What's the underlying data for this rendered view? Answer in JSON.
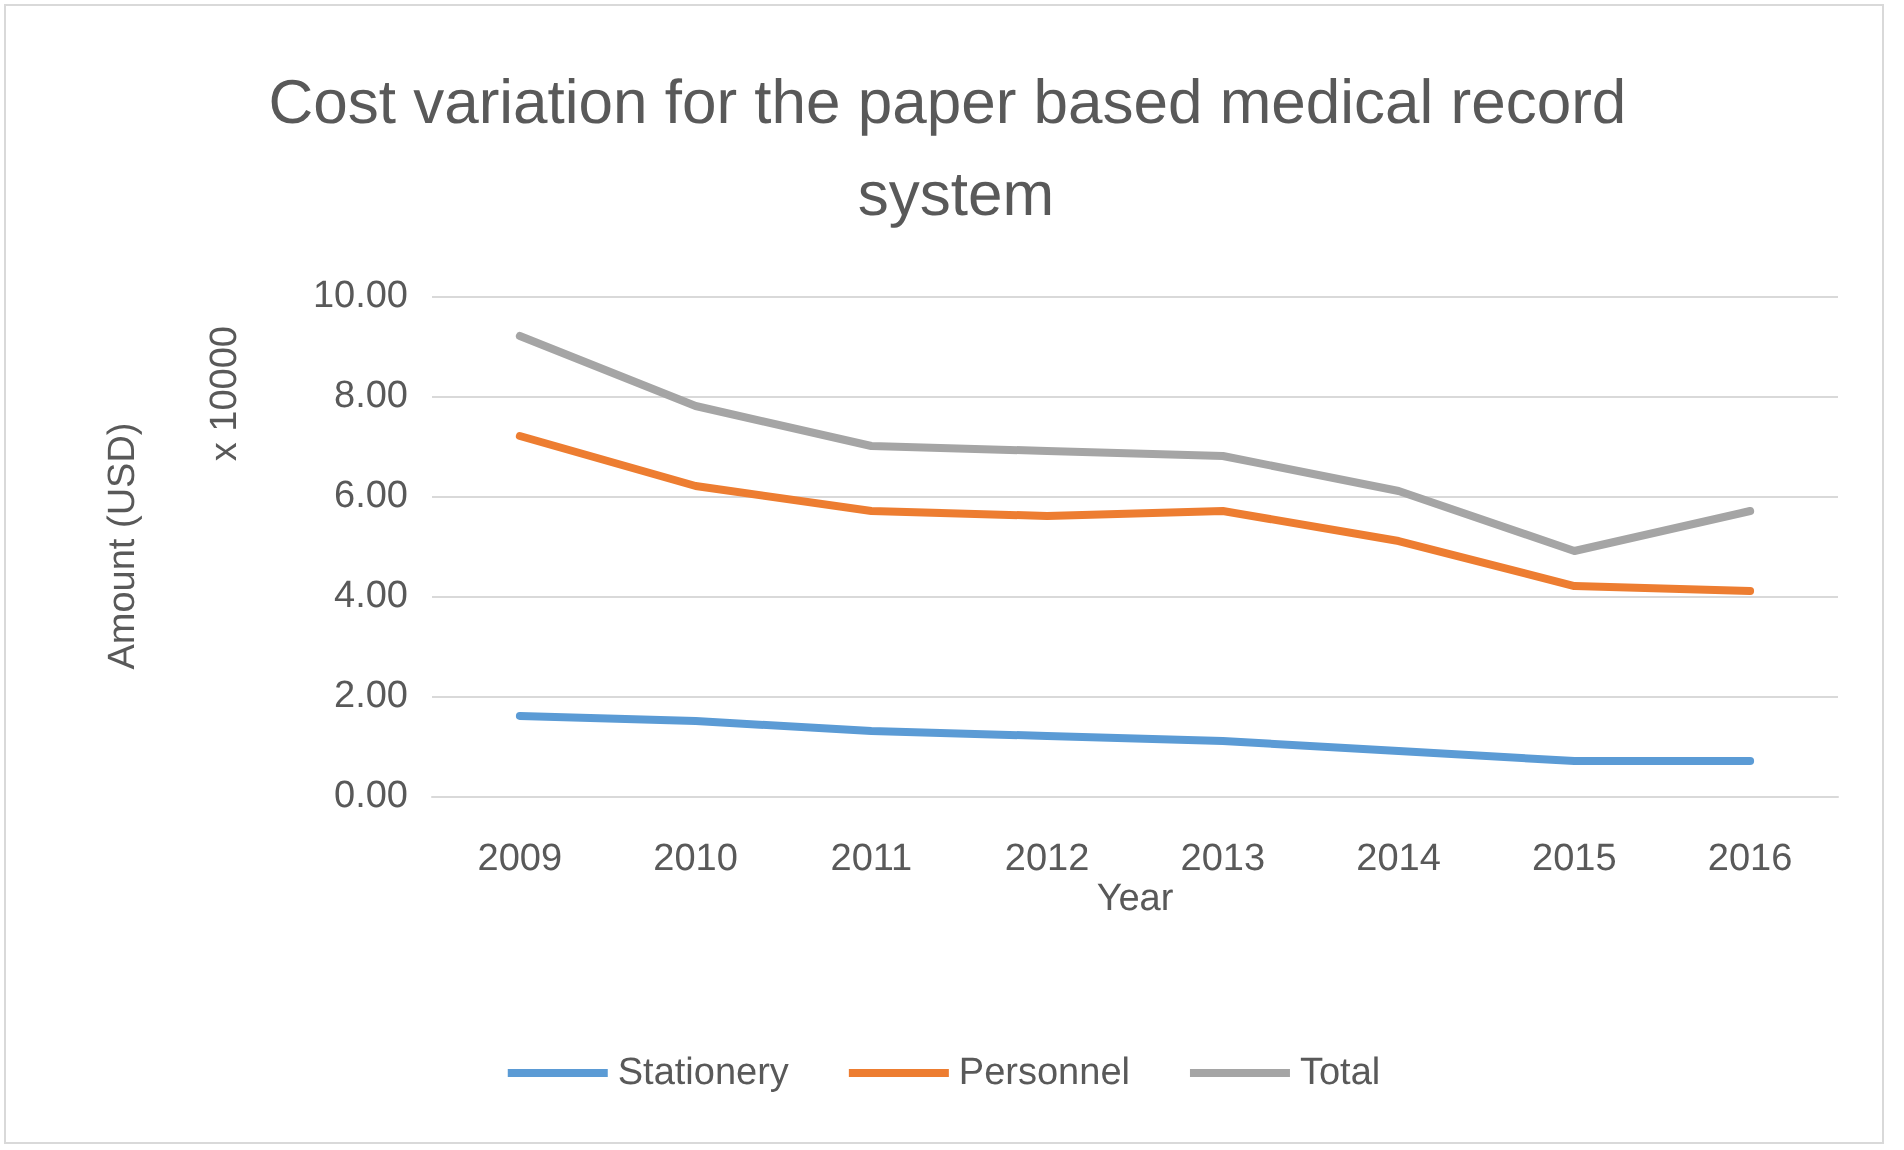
{
  "chart_data": {
    "type": "line",
    "title": "Cost variation for the paper based medical record system",
    "xlabel": "Year",
    "ylabel": "Amount (USD)",
    "annotations": [
      "x 10000"
    ],
    "categories": [
      "2009",
      "2010",
      "2011",
      "2012",
      "2013",
      "2014",
      "2015",
      "2016"
    ],
    "series": [
      {
        "name": "Stationery",
        "color": "#5b9bd5",
        "values": [
          1.6,
          1.5,
          1.3,
          1.2,
          1.1,
          0.9,
          0.7,
          0.7
        ]
      },
      {
        "name": "Personnel",
        "color": "#ed7d31",
        "values": [
          7.2,
          6.2,
          5.7,
          5.6,
          5.7,
          5.1,
          4.2,
          4.1
        ]
      },
      {
        "name": "Total",
        "color": "#a5a5a5",
        "values": [
          9.2,
          7.8,
          7.0,
          6.9,
          6.8,
          6.1,
          4.9,
          5.7
        ]
      }
    ],
    "ylim": [
      0,
      10
    ],
    "yticks": [
      {
        "value": 0,
        "label": "0.00"
      },
      {
        "value": 2,
        "label": "2.00"
      },
      {
        "value": 4,
        "label": "4.00"
      },
      {
        "value": 6,
        "label": "6.00"
      },
      {
        "value": 8,
        "label": "8.00"
      },
      {
        "value": 10,
        "label": "10.00"
      }
    ],
    "grid": "y",
    "legend": "bottom",
    "marker": "none",
    "line_style": "solid"
  }
}
